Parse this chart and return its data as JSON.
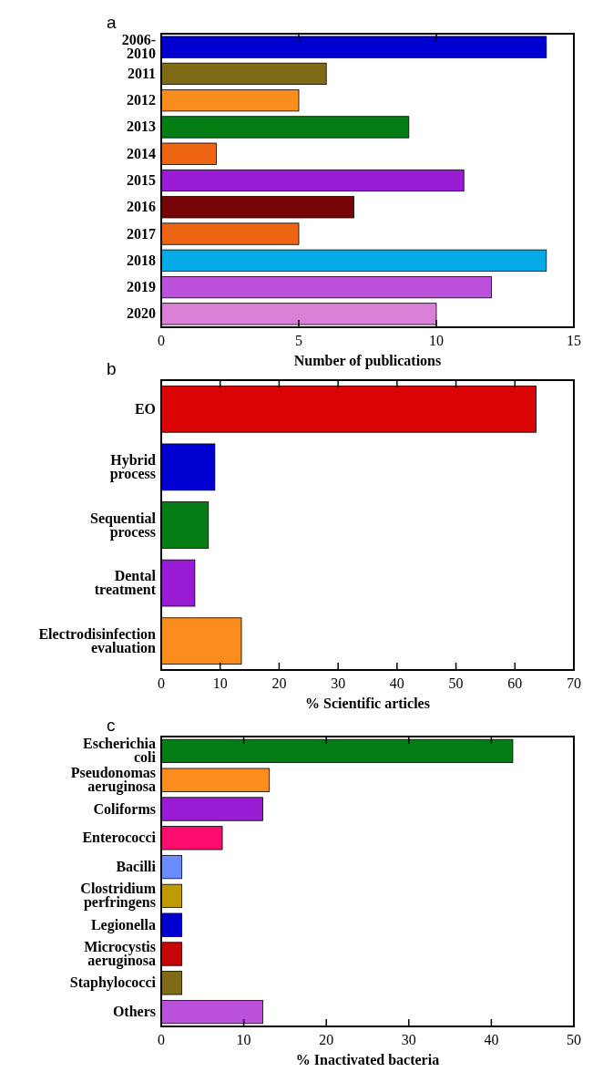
{
  "chart_data": [
    {
      "type": "bar",
      "orientation": "horizontal",
      "title": "a",
      "xlabel": "Number of publications",
      "categories": [
        "2006-\n2010",
        "2011",
        "2012",
        "2013",
        "2014",
        "2015",
        "2016",
        "2017",
        "2018",
        "2019",
        "2020"
      ],
      "values": [
        14,
        6,
        5,
        9,
        2,
        11,
        7,
        5,
        14,
        12,
        10
      ],
      "colors": [
        "#0000d0",
        "#7f6b16",
        "#fb8c1e",
        "#037d14",
        "#ee6513",
        "#9a1bd4",
        "#780505",
        "#ee6513",
        "#05abe6",
        "#bc52dc",
        "#da80d6"
      ],
      "xlim": [
        0,
        15
      ],
      "xticks": [
        0,
        5,
        10,
        15
      ],
      "grid": false
    },
    {
      "type": "bar",
      "orientation": "horizontal",
      "title": "b",
      "xlabel": "% Scientific articles",
      "categories": [
        "EO",
        "Hybrid\nprocess",
        "Sequential\nprocess",
        "Dental\ntreatment",
        "Electrodisinfection\nevaluation"
      ],
      "values": [
        63.6,
        9.1,
        8.0,
        5.7,
        13.6
      ],
      "colors": [
        "#dc0505",
        "#0000d0",
        "#037d14",
        "#9a1bd4",
        "#fb8c1e"
      ],
      "xlim": [
        0,
        70
      ],
      "xticks": [
        0,
        10,
        20,
        30,
        40,
        50,
        60,
        70
      ],
      "grid": false
    },
    {
      "type": "bar",
      "orientation": "horizontal",
      "title": "c",
      "xlabel": "% Inactivated bacteria",
      "categories": [
        "Escherichia\ncoli",
        "Pseudonomas\naeruginosa",
        "Coliforms",
        "Enterococci",
        "Bacilli",
        "Clostridium\nperfringens",
        "Legionella",
        "Microcystis\naeruginosa",
        "Staphylococci",
        "Others"
      ],
      "values": [
        42.6,
        13.1,
        12.3,
        7.4,
        2.5,
        2.5,
        2.5,
        2.5,
        2.5,
        12.3
      ],
      "colors": [
        "#037d14",
        "#fb8c1e",
        "#9a1bd4",
        "#fc0c6c",
        "#6a8cfc",
        "#bf9a05",
        "#0000d0",
        "#c60505",
        "#7f6b16",
        "#bc52dc"
      ],
      "xlim": [
        0,
        50
      ],
      "xticks": [
        0,
        10,
        20,
        30,
        40,
        50
      ],
      "grid": false
    }
  ]
}
